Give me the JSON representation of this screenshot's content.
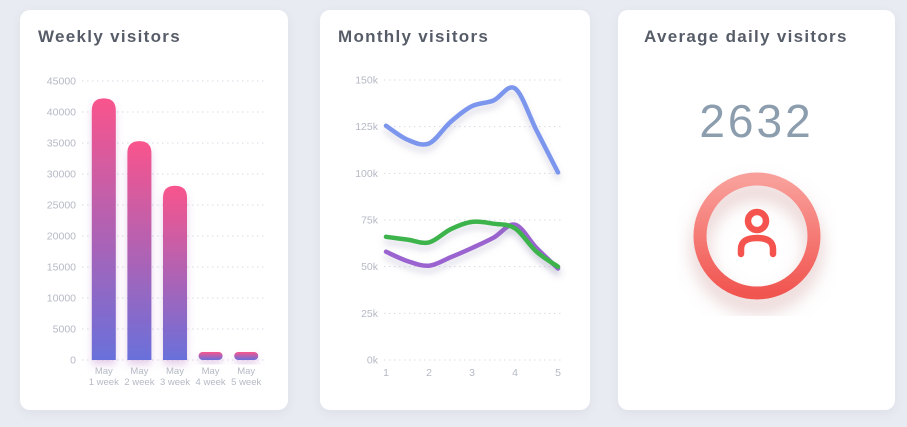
{
  "page": {
    "background": "#e9ebf2"
  },
  "cards": {
    "weekly": {
      "title": "Weekly visitors"
    },
    "monthly": {
      "title": "Monthly visitors"
    },
    "average": {
      "title": "Average daily visitors",
      "value": "2632"
    }
  },
  "colors": {
    "title_text": "#575d68",
    "tick_text": "#b5b9c4",
    "grid_line": "#d9dbe4",
    "bar_gradient_top": "#f9548c",
    "bar_gradient_bottom": "#6970da",
    "line_blue": "#7b96ee",
    "line_green": "#3cb44b",
    "line_purple": "#9a63cf",
    "kpi_number": "#8c9dae",
    "ring_gradient_top": "#f99f9a",
    "ring_gradient_bottom": "#f15550",
    "person_icon": "#f4534e"
  },
  "chart_data": [
    {
      "id": "weekly",
      "type": "bar",
      "title": "Weekly visitors",
      "categories": [
        {
          "line1": "May",
          "line2": "1 week"
        },
        {
          "line1": "May",
          "line2": "2 week"
        },
        {
          "line1": "May",
          "line2": "3 week"
        },
        {
          "line1": "May",
          "line2": "4 week"
        },
        {
          "line1": "May",
          "line2": "5 week"
        }
      ],
      "values": [
        42200,
        35300,
        28100,
        1300,
        1300
      ],
      "ylim": [
        0,
        45000
      ],
      "yticks": [
        0,
        5000,
        10000,
        15000,
        20000,
        25000,
        30000,
        35000,
        40000,
        45000
      ],
      "grid": "dotted-horizontal",
      "legend": "none",
      "bar_gradient": [
        "#f9548c",
        "#6970da"
      ]
    },
    {
      "id": "monthly",
      "type": "line",
      "title": "Monthly visitors",
      "x": [
        1,
        1.5,
        2,
        2.5,
        3,
        3.5,
        4,
        4.5,
        5
      ],
      "xticks": [
        1,
        2,
        3,
        4,
        5
      ],
      "ylim": [
        0,
        150000
      ],
      "yticks": [
        0,
        25000,
        50000,
        75000,
        100000,
        125000,
        150000
      ],
      "ytick_labels": [
        "0k",
        "25k",
        "50k",
        "75k",
        "100k",
        "125k",
        "150k"
      ],
      "grid": "dotted-horizontal",
      "legend": "none",
      "series": [
        {
          "name": "blue",
          "color": "#7b96ee",
          "values": [
            125500,
            118000,
            116000,
            127500,
            136000,
            139000,
            145500,
            123000,
            100500
          ]
        },
        {
          "name": "purple",
          "color": "#9a63cf",
          "values": [
            58000,
            53000,
            50500,
            55000,
            60000,
            65500,
            72500,
            60000,
            49000
          ]
        },
        {
          "name": "green",
          "color": "#3cb44b",
          "values": [
            66000,
            64500,
            63000,
            70000,
            74000,
            73000,
            70500,
            58000,
            50000
          ]
        }
      ]
    },
    {
      "id": "average",
      "type": "kpi",
      "title": "Average daily visitors",
      "value": 2632
    }
  ]
}
